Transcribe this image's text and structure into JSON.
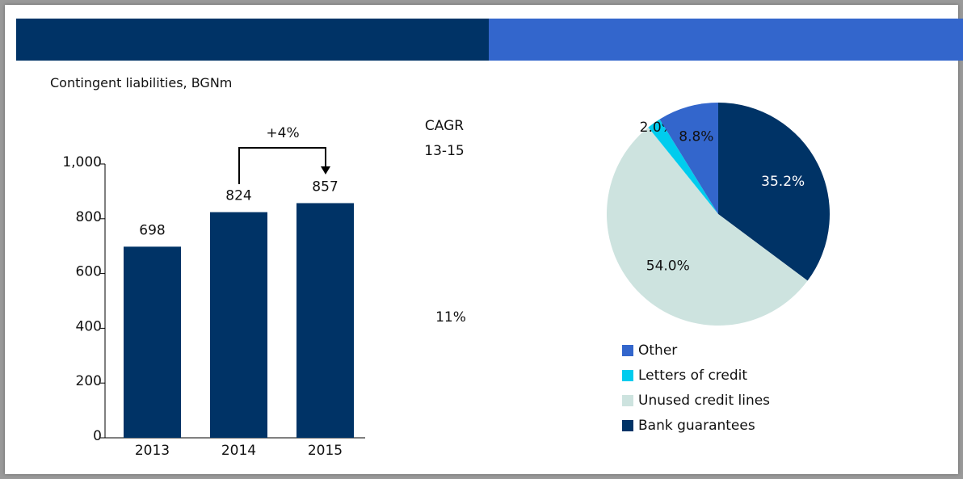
{
  "chart_data": [
    {
      "type": "bar",
      "title": "Contingent liabilities, BGNm",
      "categories": [
        "2013",
        "2014",
        "2015"
      ],
      "values": [
        698,
        824,
        857
      ],
      "color": "#003366",
      "ylim": [
        0,
        1000
      ],
      "yticks": [
        0,
        200,
        400,
        600,
        800,
        {
          "value": 1000,
          "label": "1,000"
        }
      ],
      "growth_label": "+4%",
      "cagr_label": "CAGR",
      "cagr_period": "13-15",
      "cagr_value": "11%"
    },
    {
      "type": "pie",
      "categories": [
        "Bank guarantees",
        "Unused credit lines",
        "Letters of credit",
        "Other"
      ],
      "values": [
        35.2,
        54.0,
        2.0,
        8.8
      ],
      "value_labels": [
        "35.2%",
        "54.0%",
        "2.0%",
        "8.8%"
      ],
      "colors": [
        "#003366",
        "#cde3df",
        "#00ccee",
        "#3366cc"
      ]
    }
  ]
}
